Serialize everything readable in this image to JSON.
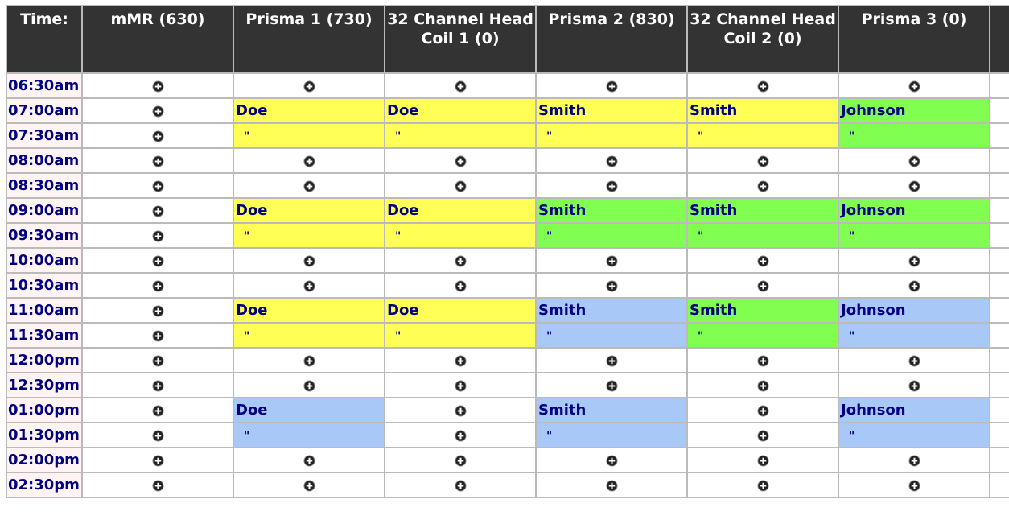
{
  "header": {
    "time_label": "Time:",
    "columns": [
      "mMR (630)",
      "Prisma 1 (730)",
      "32 Channel Head Coil 1 (0)",
      "Prisma 2 (830)",
      "32 Channel Head Coil 2 (0)",
      "Prisma 3 (0)"
    ]
  },
  "rows": [
    {
      "time": "06:30am",
      "cells": [
        null,
        null,
        null,
        null,
        null,
        null
      ]
    },
    {
      "time": "07:00am",
      "cells": [
        null,
        {
          "text": "Doe",
          "color": "#ffff55"
        },
        {
          "text": "Doe",
          "color": "#ffff55"
        },
        {
          "text": "Smith",
          "color": "#ffff55"
        },
        {
          "text": "Smith",
          "color": "#ffff55"
        },
        {
          "text": "Johnson",
          "color": "#80ff50"
        }
      ]
    },
    {
      "time": "07:30am",
      "cells": [
        null,
        {
          "text": "\"",
          "color": "#ffff55"
        },
        {
          "text": "\"",
          "color": "#ffff55"
        },
        {
          "text": "\"",
          "color": "#ffff55"
        },
        {
          "text": "\"",
          "color": "#ffff55"
        },
        {
          "text": "\"",
          "color": "#80ff50"
        }
      ]
    },
    {
      "time": "08:00am",
      "cells": [
        null,
        null,
        null,
        null,
        null,
        null
      ]
    },
    {
      "time": "08:30am",
      "cells": [
        null,
        null,
        null,
        null,
        null,
        null
      ]
    },
    {
      "time": "09:00am",
      "cells": [
        null,
        {
          "text": "Doe",
          "color": "#ffff55"
        },
        {
          "text": "Doe",
          "color": "#ffff55"
        },
        {
          "text": "Smith",
          "color": "#80ff50"
        },
        {
          "text": "Smith",
          "color": "#80ff50"
        },
        {
          "text": "Johnson",
          "color": "#80ff50"
        }
      ]
    },
    {
      "time": "09:30am",
      "cells": [
        null,
        {
          "text": "\"",
          "color": "#ffff55"
        },
        {
          "text": "\"",
          "color": "#ffff55"
        },
        {
          "text": "\"",
          "color": "#80ff50"
        },
        {
          "text": "\"",
          "color": "#80ff50"
        },
        {
          "text": "\"",
          "color": "#80ff50"
        }
      ]
    },
    {
      "time": "10:00am",
      "cells": [
        null,
        null,
        null,
        null,
        null,
        null
      ]
    },
    {
      "time": "10:30am",
      "cells": [
        null,
        null,
        null,
        null,
        null,
        null
      ]
    },
    {
      "time": "11:00am",
      "cells": [
        null,
        {
          "text": "Doe",
          "color": "#ffff55"
        },
        {
          "text": "Doe",
          "color": "#ffff55"
        },
        {
          "text": "Smith",
          "color": "#a8c8f8"
        },
        {
          "text": "Smith",
          "color": "#80ff50"
        },
        {
          "text": "Johnson",
          "color": "#a8c8f8"
        }
      ]
    },
    {
      "time": "11:30am",
      "cells": [
        null,
        {
          "text": "\"",
          "color": "#ffff55"
        },
        {
          "text": "\"",
          "color": "#ffff55"
        },
        {
          "text": "\"",
          "color": "#a8c8f8"
        },
        {
          "text": "\"",
          "color": "#80ff50"
        },
        {
          "text": "\"",
          "color": "#a8c8f8"
        }
      ]
    },
    {
      "time": "12:00pm",
      "cells": [
        null,
        null,
        null,
        null,
        null,
        null
      ]
    },
    {
      "time": "12:30pm",
      "cells": [
        null,
        null,
        null,
        null,
        null,
        null
      ]
    },
    {
      "time": "01:00pm",
      "cells": [
        null,
        {
          "text": "Doe",
          "color": "#a8c8f8"
        },
        null,
        {
          "text": "Smith",
          "color": "#a8c8f8"
        },
        null,
        {
          "text": "Johnson",
          "color": "#a8c8f8"
        }
      ]
    },
    {
      "time": "01:30pm",
      "cells": [
        null,
        {
          "text": "\"",
          "color": "#a8c8f8"
        },
        null,
        {
          "text": "\"",
          "color": "#a8c8f8"
        },
        null,
        {
          "text": "\"",
          "color": "#a8c8f8"
        }
      ]
    },
    {
      "time": "02:00pm",
      "cells": [
        null,
        null,
        null,
        null,
        null,
        null
      ]
    },
    {
      "time": "02:30pm",
      "cells": [
        null,
        null,
        null,
        null,
        null,
        null
      ]
    }
  ]
}
